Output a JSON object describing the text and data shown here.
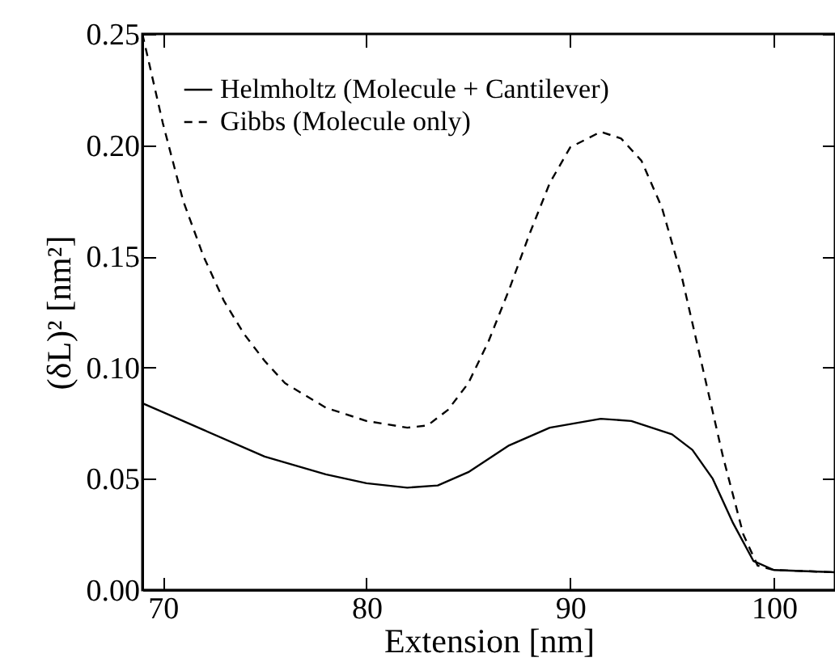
{
  "chart_data": {
    "type": "line",
    "xlabel": "Extension [nm]",
    "ylabel": "(δL)² [nm²]",
    "xlim": [
      69,
      103
    ],
    "xticks": [
      70,
      80,
      90,
      100
    ],
    "ylim": [
      0,
      0.25
    ],
    "yticks": [
      {
        "value": 0,
        "label": "0.00"
      },
      {
        "value": 0.05,
        "label": "0.05"
      },
      {
        "value": 0.1,
        "label": "0.10"
      },
      {
        "value": 0.15,
        "label": "0.15"
      },
      {
        "value": 0.2,
        "label": "0.20"
      },
      {
        "value": 0.25,
        "label": "0.25"
      }
    ],
    "legend": "top left",
    "grid": false,
    "series": [
      {
        "name": "Helmholtz (Molecule + Cantilever)",
        "color": "#000000",
        "line_style": "solid",
        "x": [
          69,
          72,
          75,
          78,
          80,
          82,
          83.5,
          85,
          87,
          89,
          91.5,
          93,
          95,
          96,
          97,
          98,
          99,
          100,
          103
        ],
        "values": [
          0.084,
          0.072,
          0.06,
          0.052,
          0.048,
          0.046,
          0.047,
          0.053,
          0.065,
          0.073,
          0.077,
          0.076,
          0.07,
          0.063,
          0.05,
          0.03,
          0.013,
          0.009,
          0.008
        ]
      },
      {
        "name": "Gibbs (Molecule only)",
        "color": "#000000",
        "line_style": "dashed",
        "x": [
          69,
          70,
          71,
          72,
          73,
          74,
          75,
          76,
          78,
          80,
          82,
          83,
          84,
          85,
          86,
          87,
          88,
          89,
          90,
          91.5,
          92.5,
          93.5,
          94.5,
          95.5,
          96.5,
          97.5,
          98.5,
          99.2,
          100,
          103
        ],
        "values": [
          0.25,
          0.21,
          0.175,
          0.15,
          0.13,
          0.115,
          0.103,
          0.093,
          0.082,
          0.076,
          0.073,
          0.074,
          0.081,
          0.093,
          0.112,
          0.135,
          0.16,
          0.183,
          0.199,
          0.206,
          0.203,
          0.193,
          0.172,
          0.14,
          0.1,
          0.06,
          0.025,
          0.011,
          0.009,
          0.008
        ]
      }
    ]
  }
}
